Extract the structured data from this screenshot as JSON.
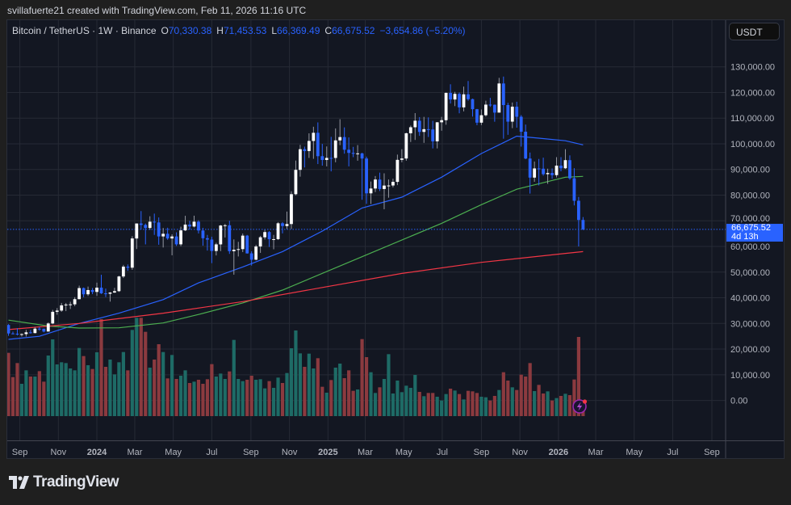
{
  "credit": "svillafuerte21 created with TradingView.com, Feb 11, 2026 11:16 UTC",
  "legend": {
    "symbol": "Bitcoin / TetherUS · 1W · Binance",
    "o_label": "O",
    "o": "70,330.38",
    "h_label": "H",
    "h": "71,453.53",
    "l_label": "L",
    "l": "66,369.49",
    "c_label": "C",
    "c": "66,675.52",
    "change": "−3,654.86 (−5.20%)"
  },
  "currency_button": "USDT",
  "last_price_tag": {
    "price": "66,675.52",
    "countdown": "4d 13h"
  },
  "logo_text": "TradingView",
  "colors": {
    "up_candle": "#ffffff",
    "down_candle": "#2962ff",
    "up_volume": "#1e6b66",
    "down_volume": "#8b3a3f",
    "ma_fast": "#2962ff",
    "ma_mid": "#4caf50",
    "ma_slow": "#f23645",
    "background": "#131722",
    "accent": "#2962ff",
    "alert_icon": "#9c27b0"
  },
  "icons": {
    "alert": "lightning-alert-icon",
    "logo": "tradingview-logo-icon"
  },
  "chart_data": {
    "type": "candlestick",
    "symbol": "Bitcoin / TetherUS",
    "interval": "1W",
    "exchange": "Binance",
    "first_candle_week": "2023-08-14",
    "ylim": [
      0,
      130000
    ],
    "grid": true,
    "price_axis": [
      "130,000.00",
      "120,000.00",
      "110,000.00",
      "100,000.00",
      "90,000.00",
      "80,000.00",
      "70,000.00",
      "60,000.00",
      "50,000.00",
      "40,000.00",
      "30,000.00",
      "20,000.00",
      "10,000.00",
      "0.00"
    ],
    "time_axis": [
      {
        "label": "Sep",
        "date": "2023-09-01"
      },
      {
        "label": "Nov",
        "date": "2023-11-01"
      },
      {
        "label": "2024",
        "date": "2024-01-01",
        "bold": true
      },
      {
        "label": "Mar",
        "date": "2024-03-01"
      },
      {
        "label": "May",
        "date": "2024-05-01"
      },
      {
        "label": "Jul",
        "date": "2024-07-01"
      },
      {
        "label": "Sep",
        "date": "2024-09-01"
      },
      {
        "label": "Nov",
        "date": "2024-11-01"
      },
      {
        "label": "2025",
        "date": "2025-01-01",
        "bold": true
      },
      {
        "label": "Mar",
        "date": "2025-03-01"
      },
      {
        "label": "May",
        "date": "2025-05-01"
      },
      {
        "label": "Jul",
        "date": "2025-07-01"
      },
      {
        "label": "Sep",
        "date": "2025-09-01"
      },
      {
        "label": "Nov",
        "date": "2025-11-01"
      },
      {
        "label": "2026",
        "date": "2026-01-01",
        "bold": true
      },
      {
        "label": "Mar",
        "date": "2026-03-01"
      },
      {
        "label": "May",
        "date": "2026-05-01"
      },
      {
        "label": "Jul",
        "date": "2026-07-01"
      },
      {
        "label": "Sep",
        "date": "2026-09-01"
      }
    ],
    "last_price": 66675.52,
    "candles_ohlc": [
      [
        29400,
        29700,
        25160,
        26100
      ],
      [
        26100,
        26800,
        25800,
        26000
      ],
      [
        26000,
        28140,
        25330,
        25800
      ],
      [
        25800,
        26120,
        24900,
        25850
      ],
      [
        25850,
        27480,
        24900,
        26530
      ],
      [
        26530,
        27480,
        26010,
        26250
      ],
      [
        26250,
        28600,
        26120,
        27970
      ],
      [
        27970,
        28600,
        27180,
        27950
      ],
      [
        27950,
        27950,
        26550,
        26850
      ],
      [
        26850,
        30400,
        26810,
        29990
      ],
      [
        29990,
        35280,
        29700,
        34530
      ],
      [
        34530,
        35980,
        33390,
        35010
      ],
      [
        35010,
        38000,
        34530,
        37050
      ],
      [
        37050,
        37980,
        34800,
        37360
      ],
      [
        37360,
        38450,
        35630,
        37450
      ],
      [
        37450,
        40250,
        36700,
        39460
      ],
      [
        39460,
        44740,
        39460,
        43780
      ],
      [
        43780,
        44000,
        40200,
        41360
      ],
      [
        41360,
        44380,
        40700,
        43010
      ],
      [
        43010,
        43810,
        41420,
        42280
      ],
      [
        42280,
        45900,
        40750,
        43950
      ],
      [
        43950,
        48970,
        41500,
        41730
      ],
      [
        41730,
        43580,
        40280,
        41570
      ],
      [
        41570,
        42250,
        38500,
        42030
      ],
      [
        42030,
        43880,
        41880,
        42580
      ],
      [
        42580,
        48590,
        42260,
        48300
      ],
      [
        48300,
        52820,
        47700,
        52140
      ],
      [
        52140,
        52980,
        50520,
        51730
      ],
      [
        51730,
        64000,
        50900,
        63110
      ],
      [
        63110,
        69000,
        59000,
        68950
      ],
      [
        68950,
        73780,
        66600,
        68390
      ],
      [
        68390,
        68930,
        60800,
        67210
      ],
      [
        67210,
        71770,
        66500,
        69650
      ],
      [
        69650,
        72800,
        64500,
        69360
      ],
      [
        69360,
        71300,
        60660,
        63910
      ],
      [
        63910,
        67200,
        59600,
        64940
      ],
      [
        64940,
        67300,
        62600,
        63120
      ],
      [
        63120,
        64730,
        56550,
        63890
      ],
      [
        63890,
        65500,
        60200,
        60820
      ],
      [
        60820,
        67700,
        60100,
        66270
      ],
      [
        66270,
        71950,
        66000,
        68520
      ],
      [
        68520,
        70000,
        66600,
        67770
      ],
      [
        67770,
        71990,
        67400,
        69650
      ],
      [
        69650,
        70200,
        65060,
        66220
      ],
      [
        66220,
        67260,
        60300,
        63210
      ],
      [
        63210,
        64500,
        58400,
        62680
      ],
      [
        62680,
        63800,
        53500,
        58240
      ],
      [
        58240,
        61420,
        56500,
        60800
      ],
      [
        60800,
        68380,
        58200,
        68160
      ],
      [
        68160,
        68800,
        63500,
        68250
      ],
      [
        68250,
        70000,
        57100,
        58160
      ],
      [
        58160,
        62740,
        49000,
        58710
      ],
      [
        58710,
        61800,
        56100,
        58970
      ],
      [
        58970,
        65050,
        57800,
        64220
      ],
      [
        64220,
        64480,
        57200,
        57300
      ],
      [
        57300,
        58100,
        52550,
        54840
      ],
      [
        54840,
        60650,
        54600,
        59990
      ],
      [
        59990,
        64130,
        57500,
        63580
      ],
      [
        63580,
        66500,
        62700,
        65600
      ],
      [
        65600,
        66000,
        59800,
        62820
      ],
      [
        62820,
        64500,
        58900,
        62850
      ],
      [
        62850,
        69500,
        62500,
        69030
      ],
      [
        69030,
        69500,
        65100,
        67960
      ],
      [
        67960,
        73600,
        66800,
        68730
      ],
      [
        68730,
        81500,
        66830,
        80370
      ],
      [
        80370,
        93480,
        79900,
        89850
      ],
      [
        89850,
        99590,
        87200,
        97900
      ],
      [
        97900,
        98900,
        90790,
        97180
      ],
      [
        97180,
        104090,
        94500,
        101110
      ],
      [
        101110,
        106650,
        94150,
        104290
      ],
      [
        104290,
        108350,
        92100,
        95180
      ],
      [
        95180,
        99960,
        91500,
        93710
      ],
      [
        93710,
        98980,
        91200,
        94500
      ],
      [
        94500,
        102720,
        89260,
        94490
      ],
      [
        94490,
        106000,
        92800,
        101330
      ],
      [
        101330,
        109590,
        99470,
        102620
      ],
      [
        102620,
        106400,
        96150,
        97700
      ],
      [
        97700,
        102500,
        91200,
        96460
      ],
      [
        96460,
        98800,
        94800,
        96120
      ],
      [
        96120,
        99500,
        93400,
        96260
      ],
      [
        96260,
        96500,
        78200,
        94270
      ],
      [
        94270,
        95000,
        76600,
        80700
      ],
      [
        80700,
        85300,
        76550,
        82580
      ],
      [
        82580,
        87450,
        81200,
        86080
      ],
      [
        86080,
        88760,
        81600,
        82390
      ],
      [
        82390,
        88500,
        74500,
        83730
      ],
      [
        83730,
        86100,
        79000,
        83760
      ],
      [
        83760,
        86400,
        83000,
        85170
      ],
      [
        85170,
        95800,
        83900,
        93750
      ],
      [
        93750,
        97900,
        92800,
        94280
      ],
      [
        94280,
        104350,
        93400,
        104100
      ],
      [
        104100,
        107100,
        100700,
        106450
      ],
      [
        106450,
        111970,
        101500,
        109000
      ],
      [
        109000,
        110400,
        103100,
        104630
      ],
      [
        104630,
        110500,
        100370,
        105700
      ],
      [
        105700,
        110300,
        102660,
        105590
      ],
      [
        105590,
        108950,
        98200,
        100960
      ],
      [
        100960,
        108500,
        98200,
        108380
      ],
      [
        108380,
        110500,
        105100,
        109200
      ],
      [
        109200,
        120000,
        107430,
        119840
      ],
      [
        119840,
        123200,
        115700,
        117270
      ],
      [
        117270,
        120250,
        114700,
        119450
      ],
      [
        119450,
        120000,
        111900,
        114200
      ],
      [
        114200,
        122300,
        112650,
        119290
      ],
      [
        119290,
        124470,
        116800,
        117400
      ],
      [
        117400,
        117600,
        110600,
        113490
      ],
      [
        113490,
        113600,
        107250,
        108240
      ],
      [
        108240,
        113380,
        107300,
        111140
      ],
      [
        111140,
        116800,
        110600,
        115270
      ],
      [
        115270,
        117900,
        114400,
        115230
      ],
      [
        115230,
        115300,
        108600,
        112160
      ],
      [
        112160,
        125700,
        112300,
        123510
      ],
      [
        123510,
        126200,
        102000,
        115100
      ],
      [
        115100,
        115970,
        103500,
        108640
      ],
      [
        108640,
        116100,
        106100,
        114470
      ],
      [
        114470,
        116400,
        106300,
        110540
      ],
      [
        110540,
        111190,
        98900,
        104720
      ],
      [
        104720,
        107500,
        94000,
        94260
      ],
      [
        94260,
        96600,
        80600,
        86830
      ],
      [
        86830,
        93100,
        85200,
        90400
      ],
      [
        90400,
        94100,
        83800,
        90300
      ],
      [
        90300,
        94600,
        87600,
        88170
      ],
      [
        88170,
        90300,
        84400,
        88620
      ],
      [
        88620,
        90400,
        86400,
        87800
      ],
      [
        87800,
        94800,
        86900,
        91500
      ],
      [
        91500,
        94800,
        89300,
        90470
      ],
      [
        90470,
        97900,
        90200,
        93630
      ],
      [
        93630,
        95500,
        86000,
        86570
      ],
      [
        86570,
        90500,
        76000,
        77800
      ],
      [
        77800,
        79300,
        60000,
        70330.38
      ],
      [
        70330.38,
        71453.53,
        66369.49,
        66675.52
      ]
    ],
    "volume_relative": [
      235,
      145,
      197,
      120,
      170,
      147,
      147,
      167,
      128,
      225,
      285,
      192,
      200,
      197,
      177,
      170,
      253,
      223,
      189,
      175,
      237,
      360,
      183,
      210,
      155,
      200,
      238,
      170,
      320,
      365,
      365,
      313,
      180,
      210,
      267,
      238,
      140,
      227,
      138,
      150,
      170,
      123,
      128,
      135,
      120,
      137,
      193,
      147,
      158,
      138,
      166,
      283,
      138,
      130,
      135,
      150,
      135,
      137,
      103,
      130,
      105,
      143,
      123,
      160,
      252,
      318,
      233,
      183,
      232,
      177,
      215,
      109,
      87,
      134,
      180,
      195,
      141,
      170,
      94,
      99,
      286,
      219,
      163,
      86,
      107,
      138,
      230,
      84,
      132,
      89,
      113,
      105,
      153,
      90,
      74,
      86,
      86,
      72,
      58,
      82,
      102,
      95,
      82,
      62,
      94,
      92,
      86,
      72,
      70,
      58,
      75,
      97,
      163,
      132,
      107,
      97,
      154,
      147,
      197,
      93,
      116,
      84,
      92,
      58,
      67,
      75,
      83,
      78,
      136,
      294,
      20
    ],
    "moving_averages": [
      {
        "color_key": "ma_fast",
        "points": [
          [
            "2023-08-14",
            23800
          ],
          [
            "2023-10-02",
            25000
          ],
          [
            "2023-12-04",
            30000
          ],
          [
            "2024-02-05",
            34000
          ],
          [
            "2024-04-15",
            39300
          ],
          [
            "2024-06-10",
            45800
          ],
          [
            "2024-08-19",
            52000
          ],
          [
            "2024-10-21",
            58000
          ],
          [
            "2024-12-23",
            66000
          ],
          [
            "2025-02-24",
            75000
          ],
          [
            "2025-04-28",
            79200
          ],
          [
            "2025-06-30",
            87000
          ],
          [
            "2025-09-01",
            96200
          ],
          [
            "2025-10-27",
            103000
          ],
          [
            "2025-12-01",
            102200
          ],
          [
            "2026-01-12",
            101200
          ],
          [
            "2026-02-09",
            99600
          ]
        ]
      },
      {
        "color_key": "ma_mid",
        "points": [
          [
            "2023-08-14",
            31300
          ],
          [
            "2023-10-16",
            29000
          ],
          [
            "2023-12-04",
            28200
          ],
          [
            "2024-02-05",
            28300
          ],
          [
            "2024-04-15",
            30200
          ],
          [
            "2024-06-10",
            33500
          ],
          [
            "2024-08-19",
            38000
          ],
          [
            "2024-10-21",
            43000
          ],
          [
            "2025-02-24",
            56000
          ],
          [
            "2025-06-30",
            69000
          ],
          [
            "2025-09-01",
            76300
          ],
          [
            "2025-10-27",
            82300
          ],
          [
            "2026-01-12",
            87000
          ],
          [
            "2026-02-09",
            87300
          ]
        ]
      },
      {
        "color_key": "ma_slow",
        "points": [
          [
            "2023-08-14",
            27600
          ],
          [
            "2023-12-04",
            30000
          ],
          [
            "2024-04-15",
            34000
          ],
          [
            "2024-08-19",
            38500
          ],
          [
            "2024-12-23",
            44000
          ],
          [
            "2025-04-28",
            49500
          ],
          [
            "2025-09-01",
            53800
          ],
          [
            "2026-01-12",
            57300
          ],
          [
            "2026-02-09",
            58000
          ]
        ]
      }
    ]
  }
}
